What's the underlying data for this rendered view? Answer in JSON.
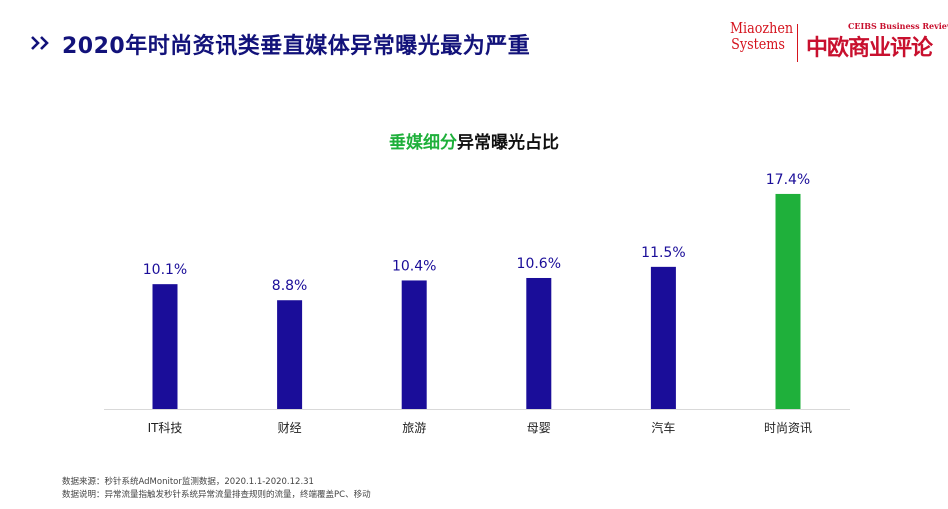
{
  "header": {
    "title": "2020年时尚资讯类垂直媒体异常曝光最为严重",
    "chevron_icon": "double-chevron-right-icon",
    "title_color": "#12127a"
  },
  "logos": {
    "miaozhen_line1": "Miaozhen",
    "miaozhen_line2": "Systems",
    "ceibs_en": "CEIBS Business Review",
    "ceibs_cn": "中欧商业评论",
    "color": "#d5141e"
  },
  "chart_data": {
    "type": "bar",
    "title_highlight": "垂媒细分",
    "title_rest": "异常曝光占比",
    "categories": [
      "IT科技",
      "财经",
      "旅游",
      "母婴",
      "汽车",
      "时尚资讯"
    ],
    "values": [
      10.1,
      8.8,
      10.4,
      10.6,
      11.5,
      17.4
    ],
    "value_labels": [
      "10.1%",
      "8.8%",
      "10.4%",
      "10.6%",
      "11.5%",
      "17.4%"
    ],
    "unit": "%",
    "colors": {
      "default": "#1a0d99",
      "highlight": "#1fb03b",
      "label": "#1a0d99",
      "axis": "#d9d9d9"
    },
    "highlight_index": 5,
    "ylim": [
      0,
      20
    ],
    "grid": false,
    "legend": "none"
  },
  "footnotes": [
    "数据来源：秒针系统AdMonitor监测数据，2020.1.1-2020.12.31",
    "数据说明：异常流量指触发秒针系统异常流量排查规则的流量，终端覆盖PC、移动"
  ]
}
